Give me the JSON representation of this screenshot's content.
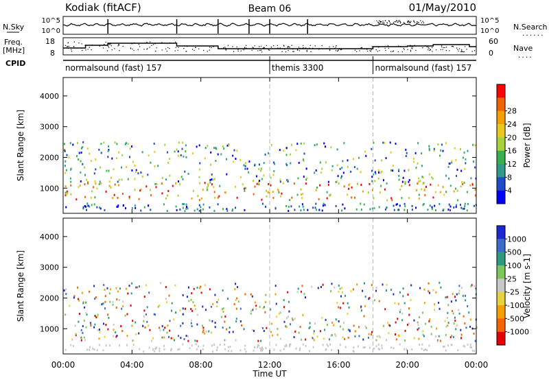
{
  "header": {
    "station": "Kodiak (fitACF)",
    "beam": "Beam 06",
    "date": "01/May/2010"
  },
  "side_labels": {
    "nsky": "N.Sky",
    "freq_line1": "Freq.",
    "freq_line2": "[MHz]",
    "cpid": "CPID",
    "nsearch": "N.Search",
    "nave": "Nave",
    "dots": "......",
    "dots_short": "...."
  },
  "strip_ticks": {
    "noise_top": "10^5",
    "noise_bottom": "10^0",
    "freq_top": "18",
    "freq_bottom": "8",
    "nave_top": "60",
    "nave_bottom": "0"
  },
  "cpid": [
    {
      "label": "normalsound (fast) 157",
      "start_hour": 0
    },
    {
      "label": "themis 3300",
      "start_hour": 12
    },
    {
      "label": "normalsound (fast) 157",
      "start_hour": 18
    }
  ],
  "chart_data": [
    {
      "type": "heatmap",
      "ylabel": "Slant Range [km]",
      "ylim": [
        180,
        4600
      ],
      "y_ticks": [
        "1000",
        "2000",
        "3000",
        "4000"
      ],
      "xlim_hours": [
        0,
        24
      ],
      "x_ticks": [
        "00:00",
        "04:00",
        "08:00",
        "12:00",
        "16:00",
        "20:00",
        "00:00"
      ],
      "colorbar": {
        "label": "Power [dB]",
        "ticks": [
          "4",
          "8",
          "12",
          "16",
          "20",
          "24",
          "28"
        ],
        "colors": [
          "#0000ff",
          "#1e4bc8",
          "#2f9a8a",
          "#38b050",
          "#a8d23a",
          "#e8c81e",
          "#f5a000",
          "#f06400",
          "#ff0000"
        ]
      }
    },
    {
      "type": "heatmap",
      "ylabel": "Slant Range [km]",
      "ylim": [
        180,
        4600
      ],
      "y_ticks": [
        "1000",
        "2000",
        "3000",
        "4000"
      ],
      "xlim_hours": [
        0,
        24
      ],
      "x_ticks": [
        "00:00",
        "04:00",
        "08:00",
        "12:00",
        "16:00",
        "20:00",
        "00:00"
      ],
      "xlabel": "Time UT",
      "colorbar": {
        "label": "Velocity [m s-1]",
        "ticks": [
          "1000",
          "500",
          "100",
          "25",
          "-25",
          "-100",
          "-500",
          "-1000"
        ],
        "colors": [
          "#1c28d2",
          "#3c6cc8",
          "#2c9a7c",
          "#7cc65a",
          "#c8c8c8",
          "#e6d23c",
          "#f5a000",
          "#f56400",
          "#e60000"
        ]
      }
    }
  ]
}
